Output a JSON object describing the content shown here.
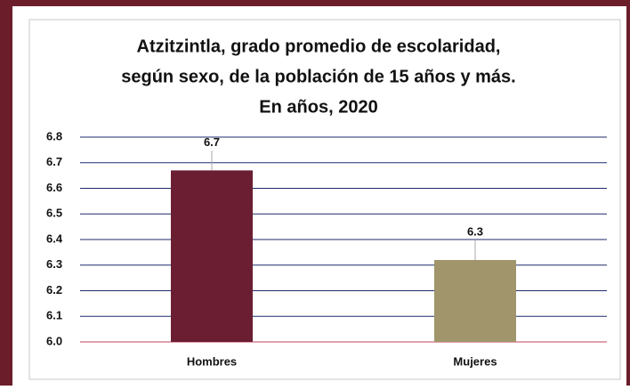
{
  "chart_data": {
    "type": "bar",
    "title": [
      "Atzitzintla, grado promedio de escolaridad,",
      "según sexo, de la población de 15 años y más.",
      "En años, 2020"
    ],
    "categories": [
      "Hombres",
      "Mujeres"
    ],
    "values": [
      6.67,
      6.32
    ],
    "value_labels": [
      "6.7",
      "6.3"
    ],
    "colors": [
      "#6b1e32",
      "#a0956b"
    ],
    "ylim": [
      6.0,
      6.8
    ],
    "yticks": [
      {
        "value": 6.0,
        "label": "6.0"
      },
      6.1,
      6.2,
      6.3,
      6.4,
      6.5,
      6.6,
      6.7,
      6.8
    ],
    "grid": true
  }
}
